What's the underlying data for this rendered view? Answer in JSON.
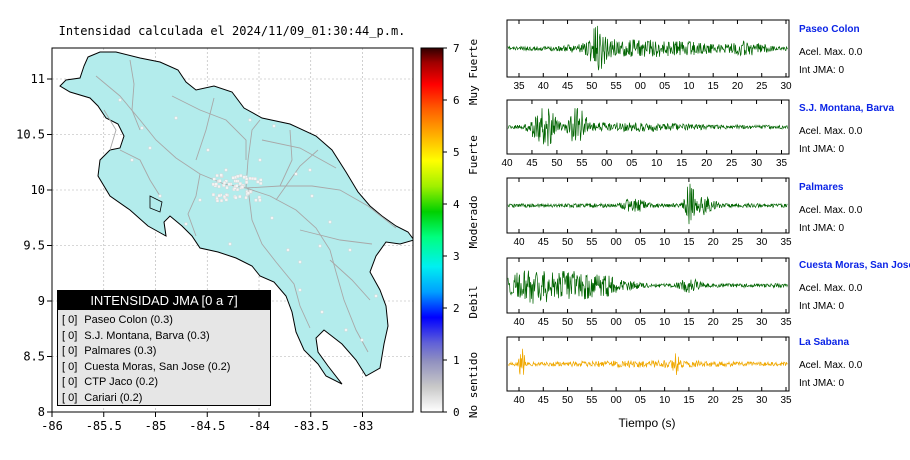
{
  "header": {
    "title": "Intensidad calculada el 2024/11/09_01:30:44_p.m."
  },
  "map": {
    "xticks": [
      "-86",
      "-85.5",
      "-85",
      "-84.5",
      "-84",
      "-83.5",
      "-83"
    ],
    "yticks": [
      "11",
      "10.5",
      "10",
      "9.5",
      "9",
      "8.5",
      "8"
    ],
    "land_color": "#b3ecec",
    "road_color": "#a8a8a8"
  },
  "legend": {
    "title": "INTENSIDAD JMA [0 a 7]",
    "items": [
      {
        "level": "[ 0]",
        "name": "Paseo Colon (0.3)"
      },
      {
        "level": "[ 0]",
        "name": "S.J. Montana, Barva (0.3)"
      },
      {
        "level": "[ 0]",
        "name": "Palmares (0.3)"
      },
      {
        "level": "[ 0]",
        "name": "Cuesta Moras, San Jose (0.2)"
      },
      {
        "level": "[ 0]",
        "name": "CTP Jaco (0.2)"
      },
      {
        "level": "[ 0]",
        "name": "Cariari (0.2)"
      }
    ]
  },
  "colorbar": {
    "ticks": [
      "0",
      "1",
      "2",
      "3",
      "4",
      "5",
      "6",
      "7"
    ],
    "labels": [
      "No sentido",
      "Debil",
      "Moderado",
      "Fuerte",
      "Muy Fuerte"
    ]
  },
  "stations": [
    {
      "name": "Paseo Colon",
      "acel": "Acel. Max. 0.0",
      "int": "Int JMA: 0",
      "color": "#006400",
      "ticks": [
        "35",
        "40",
        "45",
        "50",
        "55",
        "00",
        "05",
        "10",
        "15",
        "20",
        "25",
        "30"
      ]
    },
    {
      "name": "S.J. Montana, Barva",
      "acel": "Acel. Max. 0.0",
      "int": "Int JMA: 0",
      "color": "#006400",
      "ticks": [
        "40",
        "45",
        "50",
        "55",
        "00",
        "05",
        "10",
        "15",
        "20",
        "25",
        "30",
        "35"
      ]
    },
    {
      "name": "Palmares",
      "acel": "Acel. Max. 0.0",
      "int": "Int JMA: 0",
      "color": "#006400",
      "ticks": [
        "40",
        "45",
        "50",
        "55",
        "00",
        "05",
        "10",
        "15",
        "20",
        "25",
        "30",
        "35"
      ]
    },
    {
      "name": "Cuesta Moras, San Jose",
      "acel": "Acel. Max. 0.0",
      "int": "Int JMA: 0",
      "color": "#006400",
      "ticks": [
        "40",
        "45",
        "50",
        "55",
        "00",
        "05",
        "10",
        "15",
        "20",
        "25",
        "30",
        "35"
      ]
    },
    {
      "name": "La Sabana",
      "acel": "Acel. Max. 0.0",
      "int": "Int JMA: 0",
      "color": "#f0a800",
      "ticks": [
        "40",
        "45",
        "50",
        "55",
        "00",
        "05",
        "10",
        "15",
        "20",
        "25",
        "30",
        "35"
      ]
    }
  ],
  "traces": {
    "xlabel": "Tiempo (s)"
  },
  "chart_data": [
    {
      "type": "heatmap",
      "title": "Intensidad calculada el 2024/11/09_01:30:44_p.m.",
      "xlim": [
        -86,
        -82.5
      ],
      "ylim": [
        8,
        11.3
      ],
      "colorbar_range": [
        0,
        7
      ],
      "colorbar_categories": [
        "No sentido",
        "Debil",
        "Moderado",
        "Fuerte",
        "Muy Fuerte"
      ],
      "points": [
        {
          "name": "Paseo Colon",
          "intensity": 0.3
        },
        {
          "name": "S.J. Montana, Barva",
          "intensity": 0.3
        },
        {
          "name": "Palmares",
          "intensity": 0.3
        },
        {
          "name": "Cuesta Moras, San Jose",
          "intensity": 0.2
        },
        {
          "name": "CTP Jaco",
          "intensity": 0.2
        },
        {
          "name": "Cariari",
          "intensity": 0.2
        }
      ]
    },
    {
      "type": "line",
      "xlabel": "Tiempo (s)",
      "series": [
        {
          "name": "Paseo Colon",
          "acel_max": 0.0,
          "int_jma": 0
        },
        {
          "name": "S.J. Montana, Barva",
          "acel_max": 0.0,
          "int_jma": 0
        },
        {
          "name": "Palmares",
          "acel_max": 0.0,
          "int_jma": 0
        },
        {
          "name": "Cuesta Moras, San Jose",
          "acel_max": 0.0,
          "int_jma": 0
        },
        {
          "name": "La Sabana",
          "acel_max": 0.0,
          "int_jma": 0
        }
      ]
    }
  ]
}
